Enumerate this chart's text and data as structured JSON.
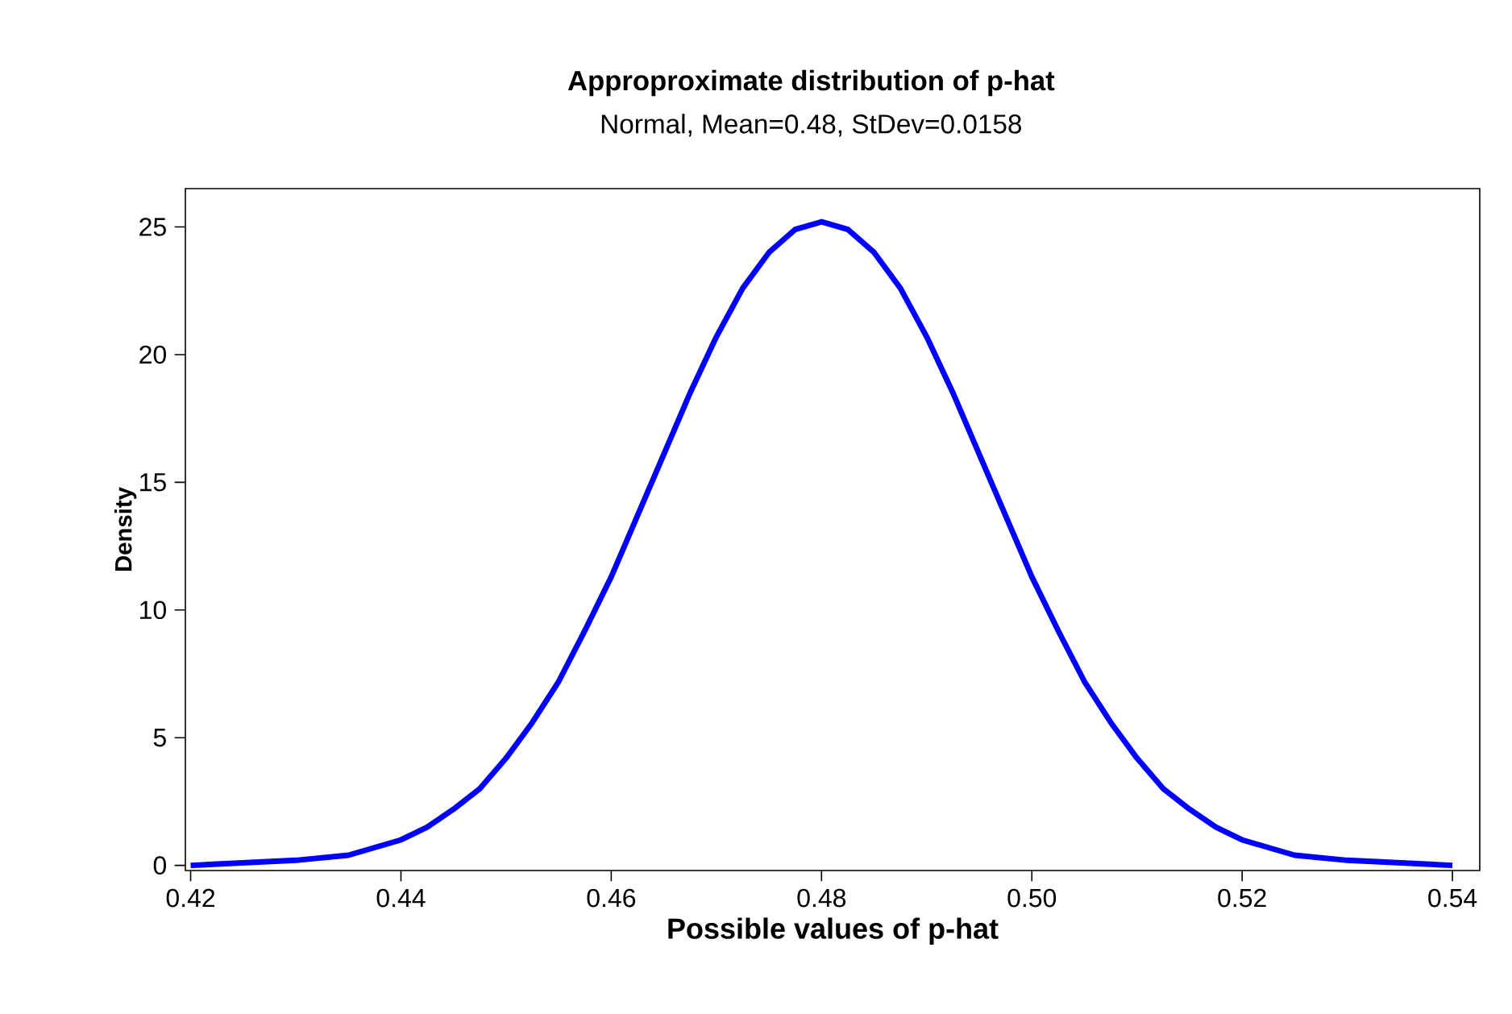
{
  "chart_data": {
    "type": "line",
    "title": "Approproximate distribution of p-hat",
    "subtitle": "Normal, Mean=0.48, StDev=0.0158",
    "xlabel": "Possible values of p-hat",
    "ylabel": "Density",
    "x": [
      0.42,
      0.425,
      0.43,
      0.435,
      0.4375,
      0.44,
      0.4425,
      0.445,
      0.4475,
      0.45,
      0.4525,
      0.455,
      0.4575,
      0.46,
      0.4625,
      0.465,
      0.4675,
      0.47,
      0.4725,
      0.475,
      0.4775,
      0.48,
      0.4825,
      0.485,
      0.4875,
      0.49,
      0.4925,
      0.495,
      0.4975,
      0.5,
      0.5025,
      0.505,
      0.5075,
      0.51,
      0.5125,
      0.515,
      0.5175,
      0.52,
      0.525,
      0.53,
      0.535,
      0.54
    ],
    "series": [
      {
        "color": "#0000ff",
        "values": [
          0.0,
          0.1,
          0.2,
          0.4,
          0.7,
          1.0,
          1.5,
          2.2,
          3.0,
          4.2,
          5.6,
          7.2,
          9.2,
          11.3,
          13.7,
          16.1,
          18.5,
          20.7,
          22.6,
          24.0,
          24.9,
          25.2,
          24.9,
          24.0,
          22.6,
          20.7,
          18.5,
          16.1,
          13.7,
          11.3,
          9.2,
          7.2,
          5.6,
          4.2,
          3.0,
          2.2,
          1.5,
          1.0,
          0.4,
          0.2,
          0.1,
          0.0
        ]
      }
    ],
    "xlim": [
      0.4195,
      0.5426
    ],
    "ylim": [
      -0.2,
      26.5
    ],
    "xticks": [
      0.42,
      0.44,
      0.46,
      0.48,
      {
        "value": 0.5,
        "label": "0.50"
      },
      0.52,
      0.54
    ],
    "yticks": [
      0,
      5,
      10,
      15,
      20,
      25
    ],
    "grid": false,
    "marker": "none",
    "line_style": "solid"
  }
}
